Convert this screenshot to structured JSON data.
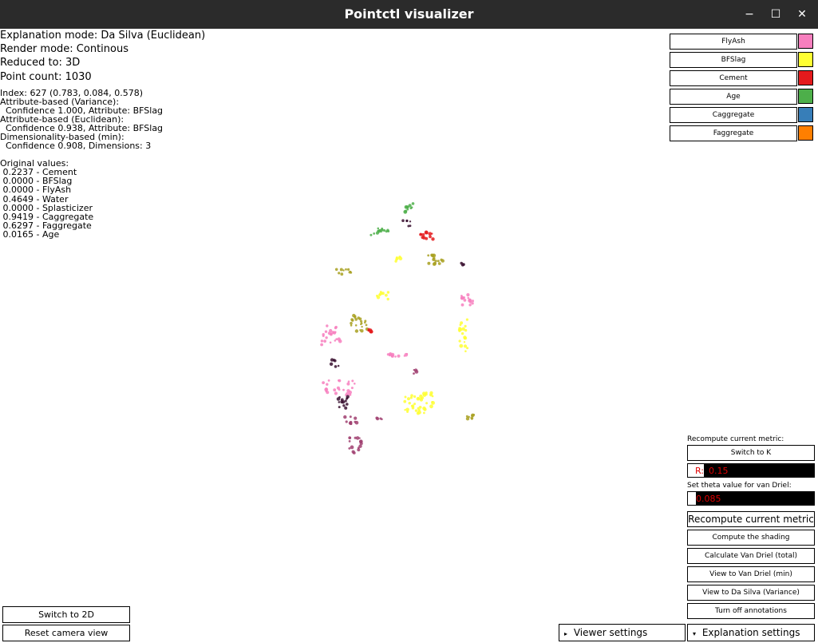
{
  "window": {
    "title": "Pointctl visualizer",
    "controls": [
      "−",
      "☐",
      "✕"
    ]
  },
  "info": {
    "explanation_mode": "Explanation mode: Da Silva (Euclidean)",
    "render_mode": "Render mode: Continous",
    "reduced_to": "Reduced to: 3D",
    "point_count": "Point count: 1030"
  },
  "details": {
    "index": "Index: 627 (0.783, 0.084, 0.578)",
    "attr_variance_title": "Attribute-based (Variance):",
    "attr_variance_value": "  Confidence 1.000, Attribute: BFSlag",
    "attr_euclidean_title": "Attribute-based (Euclidean):",
    "attr_euclidean_value": "  Confidence 0.938, Attribute: BFSlag",
    "dim_title": "Dimensionality-based (min):",
    "dim_value": "  Confidence 0.908, Dimensions: 3",
    "original_title": "Original values:",
    "original_values": [
      " 0.2237 - Cement",
      " 0.0000 - BFSlag",
      " 0.0000 - FlyAsh",
      " 0.4649 - Water",
      " 0.0000 - Splasticizer",
      " 0.9419 - Caggregate",
      " 0.6297 - Faggregate",
      " 0.0165 - Age"
    ]
  },
  "legend": [
    {
      "label": "FlyAsh",
      "color": "#f77fbe"
    },
    {
      "label": "BFSlag",
      "color": "#ffff33"
    },
    {
      "label": "Cement",
      "color": "#e41a1c"
    },
    {
      "label": "Age",
      "color": "#4daf4a"
    },
    {
      "label": "Caggregate",
      "color": "#377eb8"
    },
    {
      "label": "Faggregate",
      "color": "#ff7f00"
    }
  ],
  "panel": {
    "recompute_label": "Recompute current metric:",
    "switch_k": "Switch to K",
    "r_label": "R:",
    "r_value": "0.15",
    "theta_label": "Set theta value for van Driel:",
    "theta_value": "0.085",
    "recompute_btn": "Recompute current metric",
    "shading_btn": "Compute the shading",
    "van_driel_total_btn": "Calculate Van Driel (total)",
    "van_driel_min_btn": "View to Van Driel (min)",
    "da_silva_var_btn": "View to Da Silva (Variance)",
    "annotations_btn": "Turn off annotations"
  },
  "bottom": {
    "switch_2d": "Switch to 2D",
    "reset_camera": "Reset camera view",
    "viewer_settings": "Viewer settings",
    "explanation_settings": "Explanation settings",
    "viewer_arrow": "▸",
    "explanation_arrow": "▾"
  },
  "plot_colors": {
    "flyash": "#f77fbe",
    "bfslag": "#ffff33",
    "olive": "#a8a020",
    "cement": "#e41a1c",
    "age": "#4daf4a",
    "dark": "#3a1030",
    "mauve": "#a04070"
  }
}
